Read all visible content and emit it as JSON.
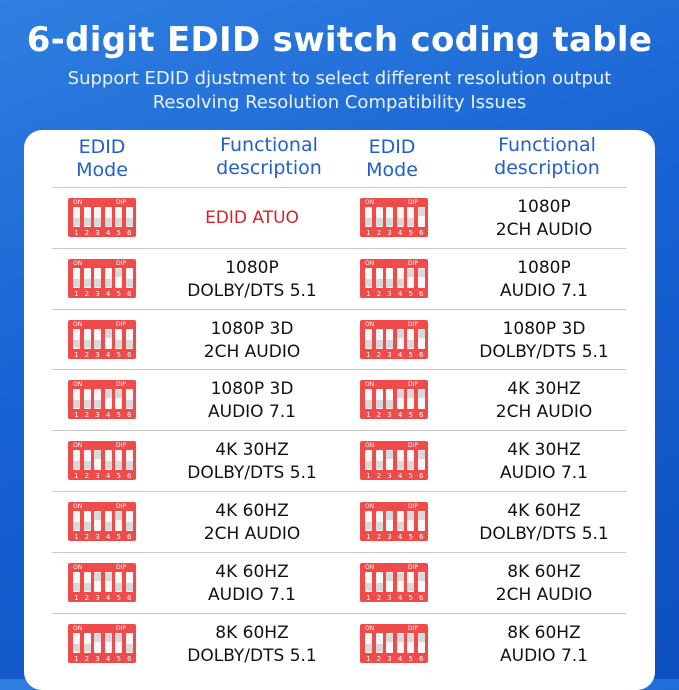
{
  "header": {
    "title": "6-digit EDID switch coding table",
    "subtitle_1": "Support EDID djustment to select different resolution output",
    "subtitle_2": "Resolving Resolution Compatibility Issues"
  },
  "table": {
    "col_mode_line1": "EDID",
    "col_mode_line2": "Mode",
    "col_desc_line1": "Functional",
    "col_desc_line2": "description",
    "dip_on_label": "ON",
    "dip_dip_label": "DIP",
    "dip_numbers": [
      "1",
      "2",
      "3",
      "4",
      "5",
      "6"
    ],
    "rows": [
      {
        "left": {
          "line1": "EDID ATUO",
          "line2": "",
          "highlight": true,
          "switches_up": [
            false,
            false,
            false,
            false,
            false,
            false
          ]
        },
        "right": {
          "line1": "1080P",
          "line2": "2CH AUDIO",
          "switches_up": [
            false,
            false,
            false,
            false,
            false,
            true
          ]
        }
      },
      {
        "left": {
          "line1": "1080P",
          "line2": "DOLBY/DTS 5.1",
          "switches_up": [
            false,
            false,
            false,
            false,
            true,
            false
          ]
        },
        "right": {
          "line1": "1080P",
          "line2": "AUDIO 7.1",
          "switches_up": [
            false,
            false,
            false,
            false,
            true,
            true
          ]
        }
      },
      {
        "left": {
          "line1": "1080P 3D",
          "line2": "2CH AUDIO",
          "switches_up": [
            false,
            false,
            false,
            true,
            false,
            false
          ]
        },
        "right": {
          "line1": "1080P 3D",
          "line2": "DOLBY/DTS 5.1",
          "switches_up": [
            false,
            false,
            false,
            true,
            false,
            true
          ]
        }
      },
      {
        "left": {
          "line1": "1080P 3D",
          "line2": "AUDIO 7.1",
          "switches_up": [
            false,
            false,
            false,
            true,
            true,
            false
          ]
        },
        "right": {
          "line1": "4K 30HZ",
          "line2": "2CH AUDIO",
          "switches_up": [
            false,
            false,
            false,
            true,
            true,
            true
          ]
        }
      },
      {
        "left": {
          "line1": "4K 30HZ",
          "line2": "DOLBY/DTS 5.1",
          "switches_up": [
            false,
            false,
            true,
            false,
            false,
            false
          ]
        },
        "right": {
          "line1": "4K 30HZ",
          "line2": "AUDIO 7.1",
          "switches_up": [
            false,
            false,
            true,
            false,
            false,
            true
          ]
        }
      },
      {
        "left": {
          "line1": "4K 60HZ",
          "line2": "2CH AUDIO",
          "switches_up": [
            false,
            false,
            true,
            false,
            true,
            false
          ]
        },
        "right": {
          "line1": "4K 60HZ",
          "line2": "DOLBY/DTS 5.1",
          "switches_up": [
            false,
            false,
            true,
            false,
            true,
            true
          ]
        }
      },
      {
        "left": {
          "line1": "4K 60HZ",
          "line2": "AUDIO 7.1",
          "switches_up": [
            false,
            false,
            true,
            true,
            false,
            false
          ]
        },
        "right": {
          "line1": "8K 60HZ",
          "line2": "2CH AUDIO",
          "switches_up": [
            false,
            false,
            true,
            true,
            false,
            true
          ]
        }
      },
      {
        "left": {
          "line1": "8K 60HZ",
          "line2": "DOLBY/DTS 5.1",
          "switches_up": [
            false,
            false,
            true,
            true,
            true,
            false
          ]
        },
        "right": {
          "line1": "8K 60HZ",
          "line2": "AUDIO 7.1",
          "switches_up": [
            false,
            false,
            true,
            true,
            true,
            true
          ]
        }
      }
    ]
  },
  "colors": {
    "background": "#1762d3",
    "header_text": "#1f5fcf",
    "dip_red": "#f04b4b",
    "highlight_text": "#d0262b"
  }
}
